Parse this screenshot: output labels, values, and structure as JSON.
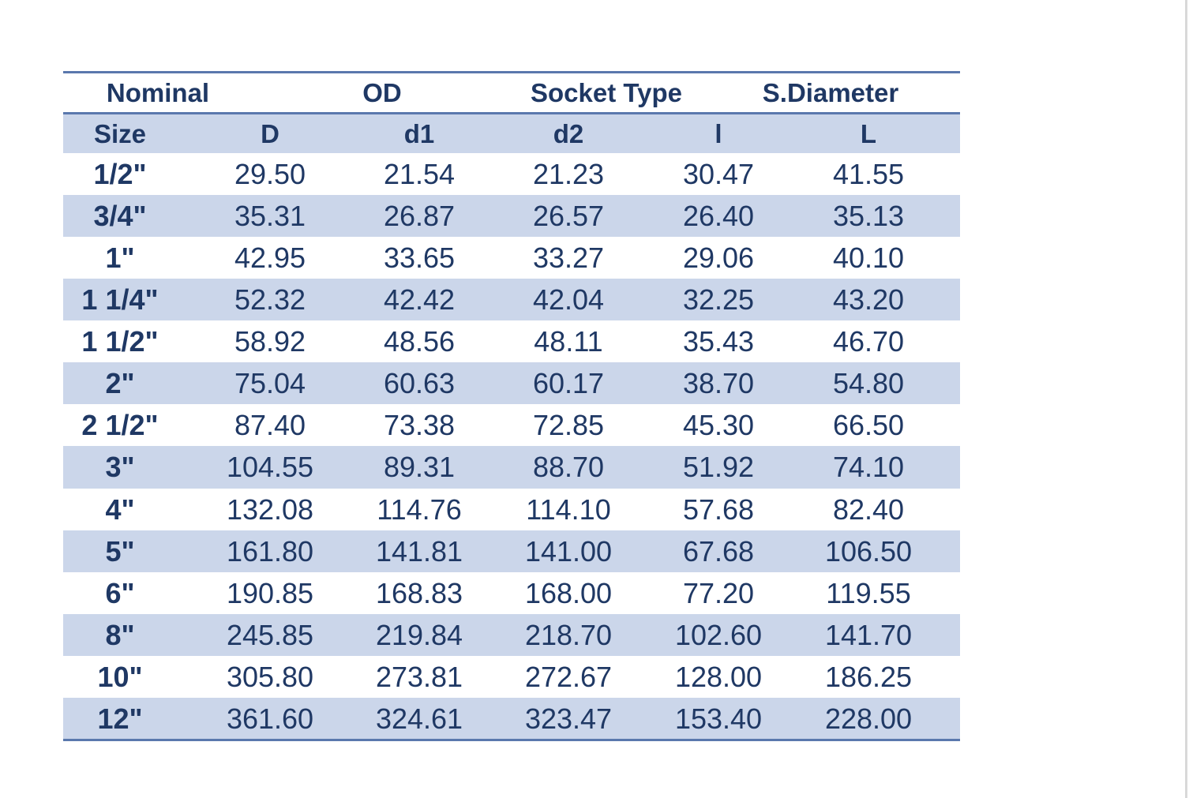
{
  "header": {
    "groups": [
      "Nominal",
      "OD",
      "Socket Type",
      "S.Diameter"
    ],
    "columns": [
      "Size",
      "D",
      "d1",
      "d2",
      "l",
      "L"
    ]
  },
  "table": {
    "rows": [
      [
        "1/2\"",
        "29.50",
        "21.54",
        "21.23",
        "30.47",
        "41.55"
      ],
      [
        "3/4\"",
        "35.31",
        "26.87",
        "26.57",
        "26.40",
        "35.13"
      ],
      [
        "1\"",
        "42.95",
        "33.65",
        "33.27",
        "29.06",
        "40.10"
      ],
      [
        "1 1/4\"",
        "52.32",
        "42.42",
        "42.04",
        "32.25",
        "43.20"
      ],
      [
        "1 1/2\"",
        "58.92",
        "48.56",
        "48.11",
        "35.43",
        "46.70"
      ],
      [
        "2\"",
        "75.04",
        "60.63",
        "60.17",
        "38.70",
        "54.80"
      ],
      [
        "2 1/2\"",
        "87.40",
        "73.38",
        "72.85",
        "45.30",
        "66.50"
      ],
      [
        "3\"",
        "104.55",
        "89.31",
        "88.70",
        "51.92",
        "74.10"
      ],
      [
        "4\"",
        "132.08",
        "114.76",
        "114.10",
        "57.68",
        "82.40"
      ],
      [
        "5\"",
        "161.80",
        "141.81",
        "141.00",
        "67.68",
        "106.50"
      ],
      [
        "6\"",
        "190.85",
        "168.83",
        "168.00",
        "77.20",
        "119.55"
      ],
      [
        "8\"",
        "245.85",
        "219.84",
        "218.70",
        "102.60",
        "141.70"
      ],
      [
        "10\"",
        "305.80",
        "273.81",
        "272.67",
        "128.00",
        "186.25"
      ],
      [
        "12\"",
        "361.60",
        "324.61",
        "323.47",
        "153.40",
        "228.00"
      ]
    ]
  }
}
